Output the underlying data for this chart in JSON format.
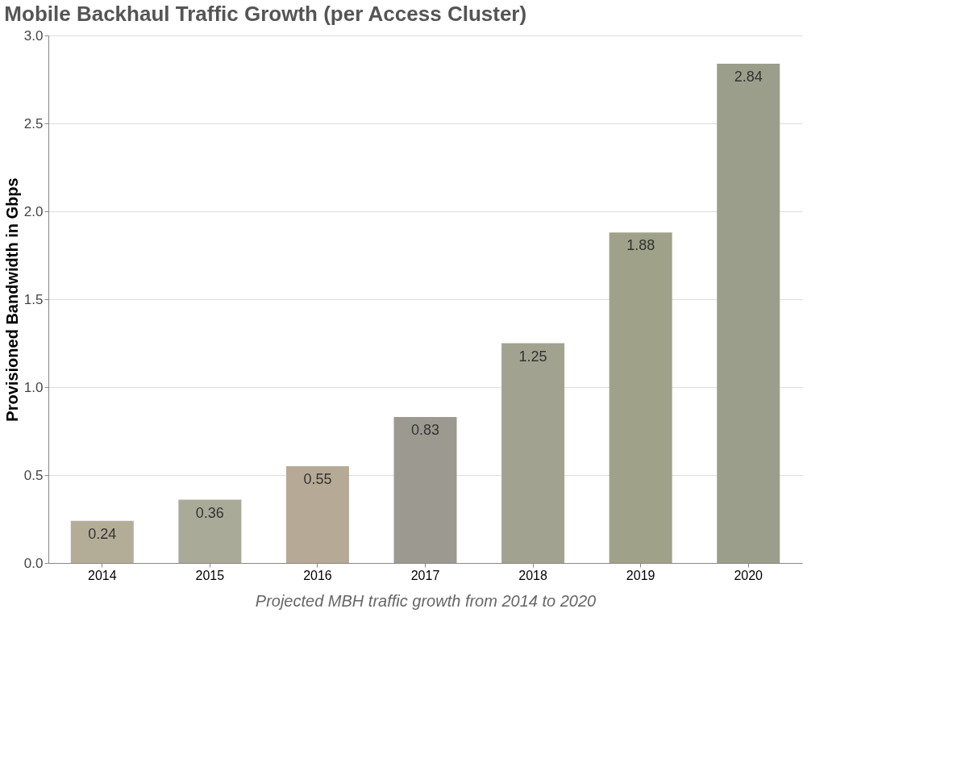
{
  "chart_data": {
    "type": "bar",
    "title": "Mobile Backhaul Traffic Growth (per Access Cluster)",
    "xlabel": "Projected MBH traffic growth from 2014 to 2020",
    "ylabel": "Provisioned Bandwidth in Gbps",
    "categories": [
      "2014",
      "2015",
      "2016",
      "2017",
      "2018",
      "2019",
      "2020"
    ],
    "values": [
      0.24,
      0.36,
      0.55,
      0.83,
      1.25,
      1.88,
      2.84
    ],
    "colors": [
      "#b3ad98",
      "#a9aa98",
      "#b6aa96",
      "#9c9a90",
      "#a2a290",
      "#9fa288",
      "#9c9e8c"
    ],
    "ylim": [
      0,
      3
    ],
    "yticks": [
      {
        "value": 0,
        "label": "0.0"
      },
      0.5,
      {
        "value": 1,
        "label": "1.0"
      },
      1.5,
      {
        "value": 2,
        "label": "2.0"
      },
      2.5,
      {
        "value": 3,
        "label": "3.0"
      }
    ],
    "grid": "y",
    "data_labels": true
  }
}
